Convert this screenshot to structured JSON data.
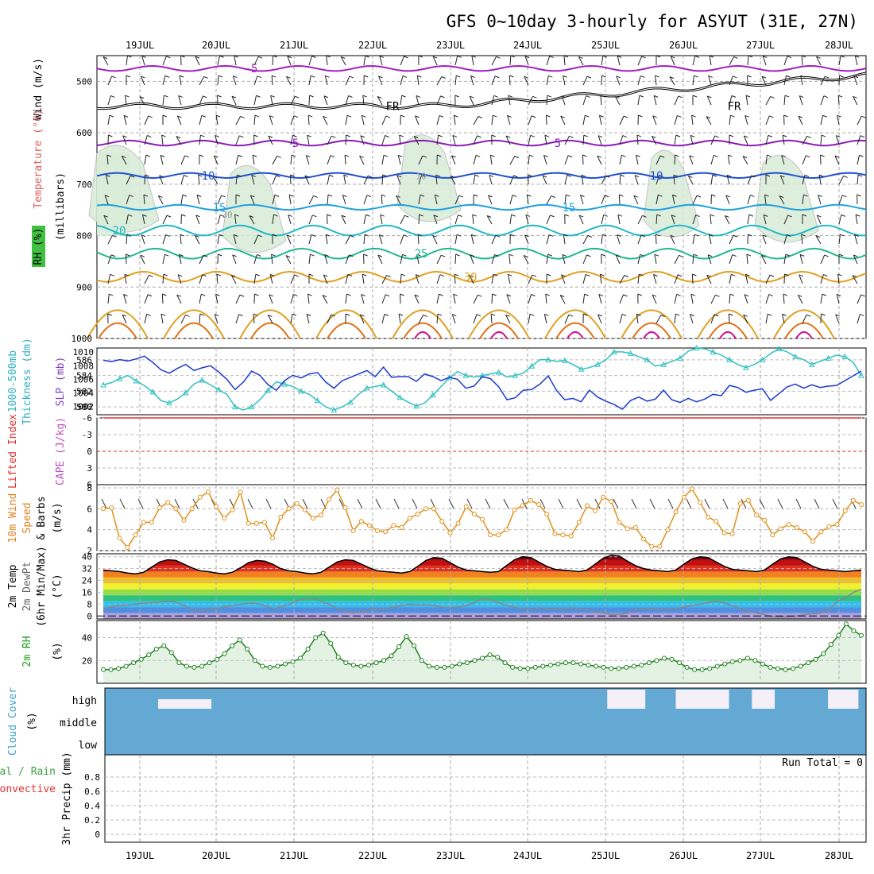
{
  "title": "GFS 0~10day 3-hourly for ASYUT (31E, 27N)",
  "dates": [
    "19JUL",
    "20JUL",
    "21JUL",
    "22JUL",
    "23JUL",
    "24JUL",
    "25JUL",
    "26JUL",
    "27JUL",
    "28JUL"
  ],
  "chart_data": [
    {
      "type": "line",
      "panel": "upper-air",
      "ylabel": [
        "Wind (m/s)",
        "Temperature (°C)",
        "RH (%)",
        "(millibars)"
      ],
      "yticks": [
        500,
        600,
        700,
        800,
        900,
        1000
      ],
      "ylim": [
        1000,
        450
      ],
      "isotherms": [
        {
          "label": "-5",
          "p": 475
        },
        {
          "label": "FR",
          "p": 548
        },
        {
          "label": "5",
          "p": 620
        },
        {
          "label": "10",
          "p": 683
        },
        {
          "label": "15",
          "p": 745
        },
        {
          "label": "20",
          "p": 790
        },
        {
          "label": "25",
          "p": 835
        },
        {
          "label": "30",
          "p": 880
        }
      ],
      "rh_labels": [
        "10",
        "30"
      ],
      "colors": {
        "minus5": "#a020c0",
        "fr": "#000000",
        "t5": "#8a1ab8",
        "t10": "#1e50d0",
        "t15": "#1ea0e0",
        "t20": "#20b8c8",
        "t25": "#20b890",
        "t30": "#e0a020",
        "t35": "#e07010",
        "t40": "#d0108a",
        "rh": "#d8ecd8"
      }
    },
    {
      "type": "line",
      "panel": "slp-thickness",
      "ylabel_left": [
        "1000-500mb",
        "Thickness (dm)"
      ],
      "ylabel_right": "SLP (mb)",
      "yticks_left": [
        580,
        582,
        584,
        586
      ],
      "yticks_right": [
        1002,
        1004,
        1006,
        1008,
        1010
      ],
      "series": [
        {
          "name": "SLP (mb)",
          "color": "#1a3ad0",
          "values": [
            1008.8,
            1008.6,
            1008.9,
            1008.7,
            1009.0,
            1009.4,
            1008.5,
            1007.4,
            1006.9,
            1007.6,
            1008.2,
            1007.3,
            1007.7,
            1008.0,
            1007.1,
            1006.0,
            1004.5,
            1005.6,
            1007.2,
            1006.6,
            1005.2,
            1004.4,
            1005.8,
            1006.6,
            1006.2,
            1006.8,
            1007.0,
            1005.6,
            1004.7,
            1005.8,
            1006.3,
            1006.8,
            1007.3,
            1006.4,
            1007.8,
            1006.3,
            1006.4,
            1006.4,
            1005.7,
            1006.8,
            1006.4,
            1005.8,
            1006.3,
            1006.0,
            1004.7,
            1005.0,
            1006.4,
            1006.1,
            1004.9,
            1003.0,
            1003.3,
            1004.4,
            1004.5,
            1005.3,
            1006.5,
            1004.4,
            1003.0,
            1003.2,
            1002.7,
            1004.4,
            1003.4,
            1002.8,
            1002.3,
            1001.6,
            1002.9,
            1003.4,
            1002.8,
            1003.1,
            1004.4,
            1003.0,
            1002.6,
            1003.2,
            1002.7,
            1003.1,
            1003.8,
            1003.6,
            1005.1,
            1004.8,
            1004.1,
            1004.4,
            1004.6,
            1002.9,
            1003.9,
            1004.9,
            1005.3,
            1004.7,
            1005.2,
            1004.8,
            1005.0,
            1005.1,
            1005.8,
            1006.5,
            1007.2
          ]
        },
        {
          "name": "Thickness (dm)",
          "color": "#30c0c0",
          "values": [
            582.8,
            583.1,
            583.6,
            584.0,
            583.3,
            582.7,
            581.9,
            580.8,
            580.5,
            581.0,
            581.8,
            582.9,
            583.4,
            582.8,
            582.2,
            581.6,
            580.0,
            579.6,
            580.0,
            580.9,
            582.1,
            583.2,
            582.9,
            582.6,
            582.0,
            581.6,
            580.8,
            580.0,
            579.6,
            580.0,
            580.6,
            581.6,
            582.4,
            582.6,
            582.8,
            582.0,
            581.2,
            580.6,
            580.1,
            580.5,
            581.5,
            582.6,
            583.7,
            584.5,
            584.0,
            583.8,
            584.0,
            584.2,
            584.4,
            583.8,
            584.0,
            584.3,
            585.2,
            586.0,
            586.0,
            585.8,
            585.9,
            585.4,
            584.8,
            585.0,
            585.4,
            586.0,
            587.0,
            587.0,
            586.8,
            586.4,
            586.0,
            585.2,
            585.4,
            585.8,
            586.2,
            587.1,
            587.8,
            587.4,
            587.0,
            586.6,
            586.0,
            585.4,
            585.0,
            585.4,
            586.0,
            586.8,
            587.4,
            587.0,
            586.4,
            586.0,
            585.4,
            585.8,
            586.2,
            586.6,
            586.4,
            585.7,
            584.0
          ]
        }
      ]
    },
    {
      "type": "line",
      "panel": "lifted-index-cape",
      "ylabel": [
        "Lifted Index",
        "CAPE (J/kg)"
      ],
      "yticks": [
        -6,
        -3,
        0,
        3,
        6
      ],
      "ylim": [
        -6,
        6
      ],
      "series": [
        {
          "name": "Lifted Index",
          "color": "#e03030",
          "values": [
            6.8,
            7,
            7,
            7,
            7,
            7,
            7,
            7,
            7,
            7,
            7,
            7,
            7,
            7,
            7,
            7,
            7,
            7,
            7,
            7,
            7,
            7,
            6.2,
            7,
            7,
            7,
            6.3,
            7,
            7,
            7,
            7,
            5.3,
            5.8,
            7,
            7,
            7,
            7,
            6.2,
            6.4,
            6.0,
            5.8,
            5.5,
            7,
            7,
            7,
            7,
            7,
            7,
            7,
            7,
            7,
            7,
            7,
            7,
            7,
            7,
            7,
            7,
            7,
            7,
            7,
            7,
            7,
            7,
            7,
            7,
            7,
            7,
            7,
            7,
            7,
            7,
            7,
            7,
            7,
            7,
            7,
            7,
            7,
            7,
            7,
            7,
            7,
            7,
            7,
            6.0,
            7,
            7,
            7,
            7,
            3.1,
            2.8,
            2.5
          ]
        }
      ]
    },
    {
      "type": "line",
      "panel": "10m-wind",
      "ylabel": [
        "10m Wind",
        "Speed",
        "& Barbs",
        "(m/s)"
      ],
      "yticks": [
        2,
        4,
        6,
        8
      ],
      "ylim": [
        2,
        8.3
      ],
      "series": [
        {
          "name": "10m Wind Speed",
          "color": "#e0901a",
          "values": [
            6,
            6.1,
            3.2,
            2.3,
            3.5,
            4.7,
            4.7,
            6.1,
            6.6,
            6,
            4.9,
            6,
            7.1,
            7.6,
            6.2,
            5.1,
            5.9,
            7.6,
            4.6,
            4.6,
            4.7,
            3.2,
            5.2,
            6,
            6.5,
            5.9,
            5.1,
            5.4,
            6.9,
            7.8,
            6.1,
            3.9,
            4.8,
            4.4,
            3.9,
            3.8,
            4.4,
            4.2,
            5.1,
            5.5,
            6,
            6,
            4.8,
            3.7,
            4.6,
            6.2,
            5.5,
            5,
            3.5,
            3.5,
            4,
            5.9,
            6.3,
            6.8,
            6.4,
            5.5,
            3.6,
            3.5,
            3.4,
            4.7,
            6.3,
            5.8,
            7.1,
            6.7,
            4.7,
            4.1,
            4.2,
            3.1,
            2.4,
            2.4,
            4,
            5.7,
            7.1,
            7.9,
            6.6,
            5.2,
            4.8,
            3.7,
            3.6,
            6.5,
            6.8,
            5.4,
            4.9,
            3.5,
            4.1,
            4.5,
            4.2,
            3.8,
            2.9,
            3.8,
            4.3,
            4.5,
            5.8,
            6.8,
            6.4
          ]
        }
      ]
    },
    {
      "type": "line",
      "panel": "2m-temp-dewpoint",
      "ylabel": [
        "2m Temp",
        "2m DewPt",
        "(6hr Min/Max)",
        "(°C)"
      ],
      "yticks": [
        0,
        8,
        16,
        24,
        32,
        40
      ],
      "ylim": [
        -2,
        42
      ],
      "series": [
        {
          "name": "2m Temp",
          "color": "#000000",
          "values": [
            31,
            30.5,
            30,
            29,
            28.5,
            29.5,
            33,
            36.5,
            38,
            37.5,
            35,
            32.5,
            30.5,
            30,
            29,
            28.5,
            29.5,
            32.5,
            36,
            37.5,
            37,
            35,
            32,
            30.5,
            30,
            29,
            28.5,
            29.5,
            33,
            36.5,
            38,
            37.5,
            35,
            32.5,
            30.5,
            30,
            29.5,
            29,
            30,
            33.5,
            37.5,
            39.5,
            39,
            36,
            33,
            31,
            30.5,
            30,
            29.5,
            30,
            34,
            38,
            40,
            39.5,
            36.5,
            33.5,
            31.5,
            31,
            30.5,
            30,
            31,
            35,
            39,
            41,
            40.5,
            37,
            34,
            32,
            31,
            30.5,
            30,
            31,
            35,
            38.5,
            40,
            39.5,
            36.5,
            33.5,
            31.5,
            31,
            30.5,
            30,
            31,
            35,
            38.5,
            40,
            39.5,
            36.5,
            33.5,
            31.5,
            31,
            30.5,
            30,
            30.5,
            31
          ]
        },
        {
          "name": "2m DewPt",
          "color": "#888888",
          "values": [
            5,
            6,
            7,
            7.5,
            8,
            8.5,
            9,
            9.5,
            10,
            9.5,
            7,
            4.5,
            3.5,
            4,
            5,
            6,
            7,
            8,
            8.5,
            8.5,
            7,
            5,
            6,
            8,
            10,
            12,
            12,
            10,
            8,
            5,
            3,
            2,
            3,
            4,
            4.5,
            5,
            6,
            7,
            8,
            7.5,
            7.5,
            7,
            6,
            5.5,
            6,
            7,
            9,
            12,
            11,
            9,
            7,
            6,
            5,
            5,
            5.5,
            5,
            4.5,
            5,
            5.5,
            5,
            4,
            3,
            2,
            1,
            1,
            2,
            4,
            5,
            4.5,
            4,
            4.5,
            5,
            6,
            7,
            8,
            9,
            10,
            9,
            7,
            5,
            3,
            2,
            1,
            -0.5,
            -0.5,
            -0.5,
            0,
            1,
            1.5,
            2,
            4,
            10,
            12,
            16,
            18
          ]
        }
      ]
    },
    {
      "type": "area",
      "panel": "2m-rh",
      "ylabel": [
        "2m RH",
        "(%)"
      ],
      "yticks": [
        20,
        40
      ],
      "ylim": [
        0,
        55
      ],
      "series": [
        {
          "name": "2m RH",
          "color": "#50b850",
          "values": [
            12,
            12,
            13,
            15,
            18,
            21,
            25,
            30,
            33,
            27,
            18,
            15,
            14,
            15,
            18,
            21,
            26,
            33,
            38,
            30,
            20,
            15,
            14,
            15,
            17,
            19,
            22,
            30,
            40,
            44,
            35,
            23,
            18,
            16,
            15,
            16,
            18,
            20,
            24,
            32,
            41,
            33,
            20,
            15,
            14,
            14,
            15,
            17,
            18,
            20,
            22,
            25,
            23,
            18,
            14,
            13,
            13,
            14,
            15,
            16,
            17,
            18,
            18,
            17,
            16,
            15,
            14,
            13,
            13,
            14,
            15,
            16,
            18,
            20,
            22,
            21,
            18,
            14,
            12,
            12,
            13,
            15,
            17,
            19,
            20,
            22,
            20,
            17,
            14,
            13,
            12,
            13,
            15,
            18,
            21,
            26,
            34,
            42,
            52,
            46,
            42
          ]
        }
      ]
    },
    {
      "type": "heatmap",
      "panel": "cloud-cover",
      "ylabel": [
        "Cloud Cover",
        "(%)"
      ],
      "rows": [
        "high",
        "middle",
        "low"
      ],
      "clear_segments_high": [
        [
          0.66,
          0.71
        ],
        [
          0.75,
          0.82
        ],
        [
          0.85,
          0.88
        ],
        [
          0.95,
          0.99
        ]
      ],
      "colors": {
        "cloud": "#64a8d4",
        "clear": "#f5f0f8"
      }
    },
    {
      "type": "bar",
      "panel": "3hr-precip",
      "ylabel": [
        "3hr Precip (mm)",
        "Total / Rain",
        "Convective"
      ],
      "yticks": [
        0,
        0.2,
        0.4,
        0.6,
        0.8
      ],
      "ylim": [
        0,
        1
      ],
      "run_total": "Run Total = 0",
      "values": []
    }
  ]
}
